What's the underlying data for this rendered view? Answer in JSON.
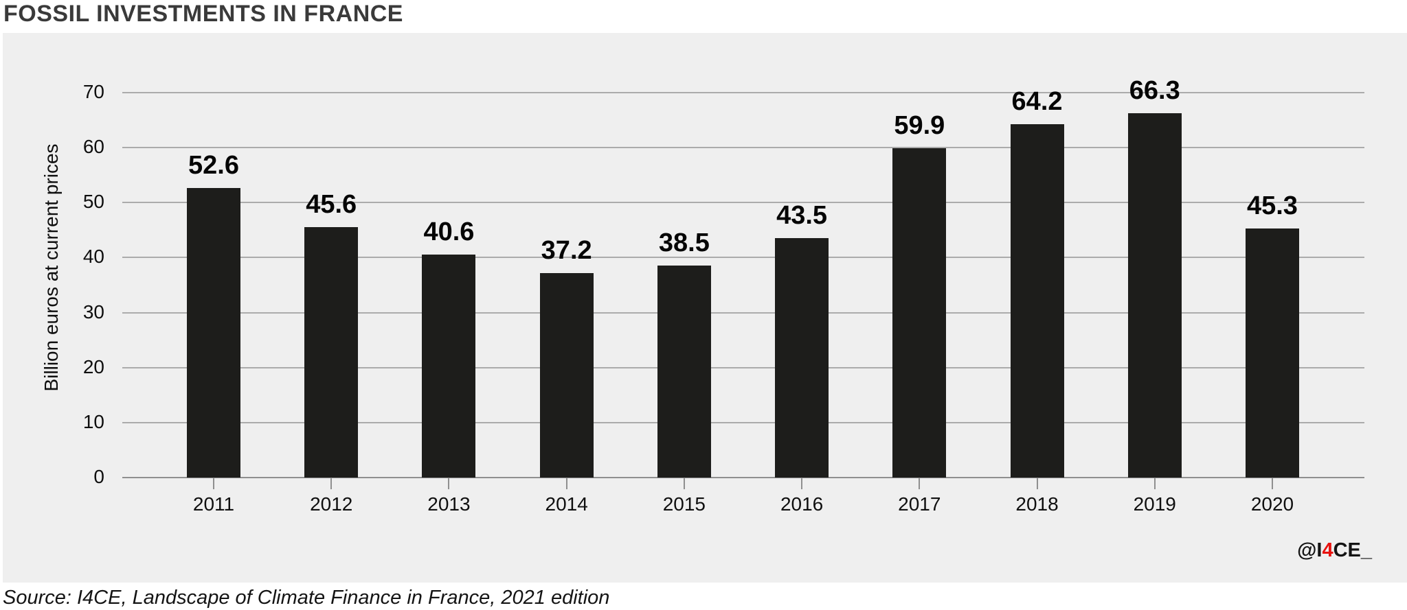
{
  "title": "FOSSIL INVESTMENTS IN FRANCE",
  "source": "Source: I4CE, Landscape of Climate Finance in France, 2021 edition",
  "watermark": {
    "prefix": "@I",
    "highlight": "4",
    "suffix": "CE_"
  },
  "colors": {
    "background": "#ffffff",
    "panel": "#efefef",
    "bar": "#1d1d1b",
    "gridline": "#ababab",
    "axis_line": "#8f8f8f",
    "title_text": "#3a3a3a",
    "label_text": "#0f0f0f",
    "watermark_red": "#e8120f"
  },
  "chart_data": {
    "type": "bar",
    "categories": [
      "2011",
      "2012",
      "2013",
      "2014",
      "2015",
      "2016",
      "2017",
      "2018",
      "2019",
      "2020"
    ],
    "values": [
      52.6,
      45.6,
      40.6,
      37.2,
      38.5,
      43.5,
      59.9,
      64.2,
      66.3,
      45.3
    ],
    "title": "FOSSIL INVESTMENTS IN FRANCE",
    "xlabel": "",
    "ylabel": "Billion euros at current prices",
    "ylim": [
      0,
      70
    ],
    "yticks": [
      0,
      10,
      20,
      30,
      40,
      50,
      60,
      70
    ],
    "grid": true,
    "legend": "none",
    "bar_color": "#1d1d1b",
    "value_labels": true
  }
}
